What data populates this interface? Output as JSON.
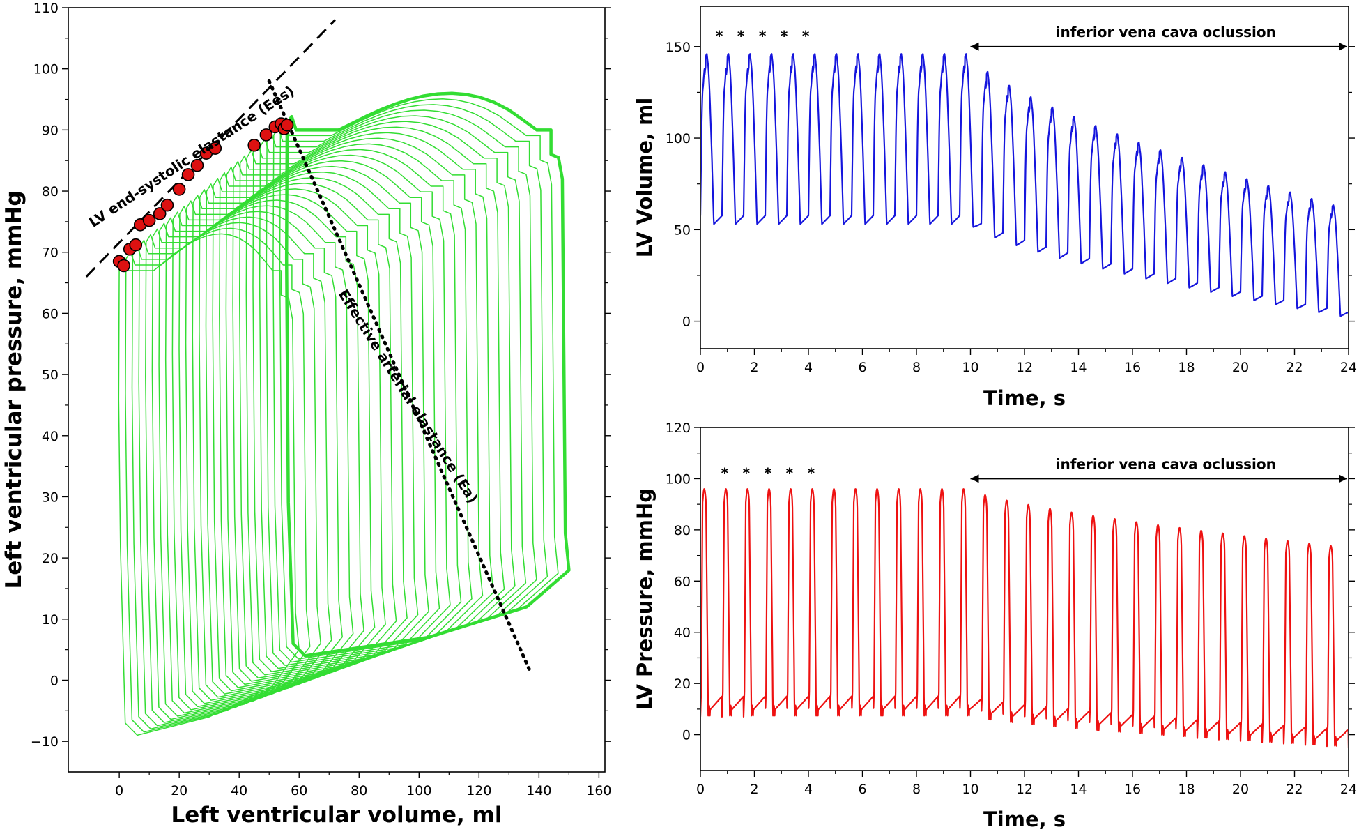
{
  "chart_data": [
    {
      "id": "pv_loops",
      "type": "line",
      "xlabel": "Left ventricular volume, ml",
      "ylabel": "Left ventricular pressure, mmHg",
      "xlim": [
        -17,
        162
      ],
      "ylim": [
        -15,
        110
      ],
      "xticks": [
        0,
        20,
        40,
        60,
        80,
        100,
        120,
        140,
        160
      ],
      "yticks": [
        -10,
        0,
        10,
        20,
        30,
        40,
        50,
        60,
        70,
        80,
        90,
        100,
        110
      ],
      "ytick_labels": [
        "−10",
        "0",
        "10",
        "20",
        "30",
        "40",
        "50",
        "60",
        "70",
        "80",
        "90",
        "100",
        "110"
      ],
      "loop_color": "#33dd33",
      "loops": {
        "count": 26,
        "first": {
          "edv": 150,
          "esv": 56,
          "edp": 18,
          "esp": 91,
          "peak": 96
        },
        "last": {
          "edv": 60,
          "esv": 0,
          "edp": 5,
          "esp": 68,
          "peak": 73
        }
      },
      "end_systolic_points": {
        "color": "#dd1111",
        "x": [
          0,
          1.5,
          3.5,
          5.5,
          7,
          10,
          13.5,
          16,
          20,
          23,
          26,
          29,
          32,
          45,
          49,
          52,
          54,
          55,
          56
        ],
        "y": [
          68.5,
          67.8,
          70.5,
          71.2,
          74.5,
          75.2,
          76.3,
          77.7,
          80.3,
          82.7,
          84.2,
          86.2,
          87,
          87.5,
          89.2,
          90.5,
          91,
          90.2,
          90.8
        ]
      },
      "lines": [
        {
          "name": "Ees",
          "style": "dashed",
          "x": [
            -11,
            72
          ],
          "y": [
            66,
            108
          ]
        },
        {
          "name": "Ea",
          "style": "dotted",
          "x": [
            50,
            137
          ],
          "y": [
            98,
            1.5
          ]
        }
      ],
      "annotations": [
        {
          "text": "LV end-systolic elastance (Ees)",
          "x": 25,
          "y": 85,
          "rotate": -33.6
        },
        {
          "text": "Effective arterial elastance (Ea)",
          "x": 95,
          "y": 46,
          "rotate": 57.9
        }
      ]
    },
    {
      "id": "lv_volume",
      "type": "line",
      "xlabel": "Time, s",
      "ylabel": "LV Volume, ml",
      "xlim": [
        0,
        24
      ],
      "ylim": [
        -15,
        172
      ],
      "xticks": [
        0,
        2,
        4,
        6,
        8,
        10,
        12,
        14,
        16,
        18,
        20,
        22,
        24
      ],
      "yticks": [
        0,
        50,
        100,
        150
      ],
      "color": "#1515dd",
      "beats": 30,
      "period_s": 0.8,
      "baseline": {
        "max": 146,
        "min": 53
      },
      "occlusion_end": {
        "max": 61,
        "min": 2
      },
      "occlusion": {
        "label": "inferior vena cava oclussion",
        "start": 10,
        "end": 24,
        "y": 150
      },
      "stars": {
        "symbol": "*",
        "t": [
          0.7,
          1.5,
          2.3,
          3.1,
          3.9
        ],
        "y": 157
      }
    },
    {
      "id": "lv_pressure",
      "type": "line",
      "xlabel": "Time, s",
      "ylabel": "LV Pressure, mmHg",
      "xlim": [
        0,
        24
      ],
      "ylim": [
        -14,
        120
      ],
      "xticks": [
        0,
        2,
        4,
        6,
        8,
        10,
        12,
        14,
        16,
        18,
        20,
        22,
        24
      ],
      "yticks": [
        0,
        20,
        40,
        60,
        80,
        100,
        120
      ],
      "color": "#ee1111",
      "beats": 30,
      "period_s": 0.8,
      "baseline": {
        "max": 96,
        "min": 7
      },
      "occlusion_end": {
        "max": 73,
        "min": -5
      },
      "occlusion": {
        "label": "inferior vena cava oclussion",
        "start": 10,
        "end": 24,
        "y": 100
      },
      "stars": {
        "symbol": "*",
        "t": [
          0.9,
          1.7,
          2.5,
          3.3,
          4.1
        ],
        "y": 103
      }
    }
  ]
}
